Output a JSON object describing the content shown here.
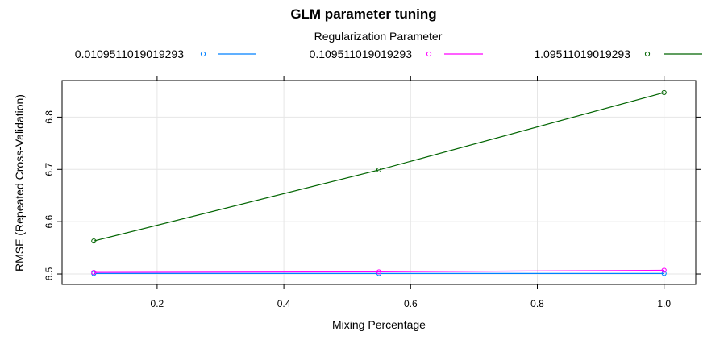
{
  "chart_data": {
    "type": "line",
    "title": "GLM parameter tuning",
    "legend_title": "Regularization Parameter",
    "legend_position": "top",
    "xlabel": "Mixing Percentage",
    "ylabel": "RMSE (Repeated Cross-Validation)",
    "xlim": [
      0.05,
      1.05
    ],
    "ylim": [
      6.48,
      6.87
    ],
    "xticks": [
      "0.2",
      "0.4",
      "0.6",
      "0.8",
      "1.0"
    ],
    "yticks": [
      "6.5",
      "6.6",
      "6.7",
      "6.8"
    ],
    "grid": true,
    "x": [
      0.1,
      0.55,
      1.0
    ],
    "series": [
      {
        "name": "0.0109511019019293",
        "color": "#0080ff",
        "values": [
          6.501,
          6.501,
          6.501
        ]
      },
      {
        "name": "0.109511019019293",
        "color": "#ff00ff",
        "values": [
          6.503,
          6.504,
          6.507
        ]
      },
      {
        "name": "1.09511019019293",
        "color": "#006400",
        "values": [
          6.563,
          6.699,
          6.847
        ]
      }
    ]
  }
}
